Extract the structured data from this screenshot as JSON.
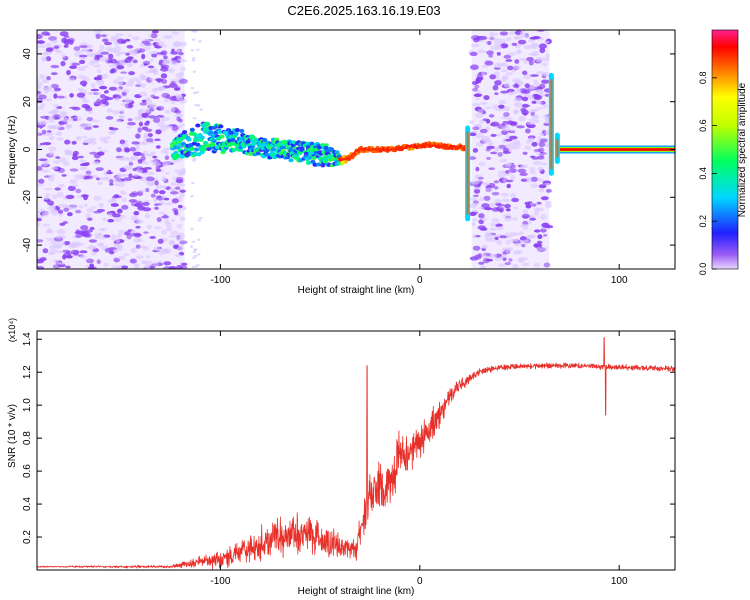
{
  "figure_title": "C2E6.2025.163.16.19.E03",
  "colors": {
    "frame": "#000000",
    "snr_line": "#e8302a",
    "noise_purple": "#8a3ff2",
    "noise_purple_light": "#d9c6ff"
  },
  "chart_data": [
    {
      "type": "heatmap",
      "title": "",
      "xlabel": "Height of straight line (km)",
      "ylabel": "Frequency (Hz)",
      "xlim": [
        -192,
        128
      ],
      "ylim": [
        -50,
        50
      ],
      "x_ticks": [
        -100,
        0,
        100
      ],
      "y_ticks": [
        -40,
        -20,
        0,
        20,
        40
      ],
      "grid": false,
      "colorbar": {
        "label": "Normalized spectral amplitude",
        "range": [
          0,
          1
        ],
        "ticks": [
          "0.0",
          "0.2",
          "0.4",
          "0.6",
          "0.8"
        ],
        "colormap": "rainbow"
      },
      "noise_regions_x": [
        [
          -192,
          -118
        ],
        [
          26,
          65
        ]
      ],
      "signal_track": {
        "x": [
          -124,
          -110,
          -100,
          -90,
          -80,
          -70,
          -60,
          -50,
          -45,
          -40,
          -36,
          -30,
          -25,
          -15,
          -5,
          5,
          15,
          21,
          24
        ],
        "y_mid": [
          0,
          5,
          5,
          3,
          1,
          0,
          -1,
          -2,
          -3,
          -4,
          -4,
          0,
          0,
          0,
          1,
          2,
          1,
          1,
          0
        ],
        "spread": [
          4,
          7,
          6,
          5,
          4,
          4,
          4,
          5,
          4,
          2,
          1,
          0.6,
          0.6,
          0.5,
          0.6,
          0.6,
          0.6,
          0.6,
          0.8
        ]
      },
      "tail_track": {
        "x": [
          69,
          128
        ],
        "y": 0
      },
      "spikes": [
        {
          "x": 24,
          "y_from": -29,
          "y_to": 9
        },
        {
          "x": 66,
          "y_from": -10,
          "y_to": 31
        },
        {
          "x": 69,
          "y_from": -5,
          "y_to": 6
        }
      ]
    },
    {
      "type": "line",
      "title": "",
      "xlabel": "Height of straight line (km)",
      "ylabel": "SNR (10 * v/v)",
      "y_multiplier": "(x10⁴)",
      "xlim": [
        -192,
        128
      ],
      "ylim": [
        0,
        1.45
      ],
      "x_ticks": [
        -100,
        0,
        100
      ],
      "y_ticks": [
        "0.2",
        "0.4",
        "0.6",
        "0.8",
        "1.0",
        "1.2",
        "1.4"
      ],
      "y_tick_values": [
        0.2,
        0.4,
        0.6,
        0.8,
        1.0,
        1.2,
        1.4
      ],
      "grid": false,
      "series": [
        {
          "color": "#e8302a",
          "envelope_x": [
            -192,
            -125,
            -110,
            -100,
            -85,
            -70,
            -60,
            -50,
            -40,
            -32,
            -28,
            -25,
            -20,
            -15,
            -10,
            -5,
            0,
            5,
            10,
            15,
            20,
            25,
            30,
            40,
            60,
            80,
            100,
            128
          ],
          "envelope_mean": [
            0.02,
            0.02,
            0.05,
            0.06,
            0.13,
            0.2,
            0.22,
            0.2,
            0.15,
            0.12,
            0.35,
            0.45,
            0.5,
            0.55,
            0.7,
            0.73,
            0.78,
            0.85,
            0.95,
            1.05,
            1.12,
            1.16,
            1.2,
            1.23,
            1.24,
            1.24,
            1.23,
            1.22
          ],
          "envelope_amp": [
            0.005,
            0.01,
            0.04,
            0.06,
            0.12,
            0.15,
            0.15,
            0.12,
            0.1,
            0.08,
            0.15,
            0.18,
            0.18,
            0.18,
            0.18,
            0.15,
            0.15,
            0.13,
            0.1,
            0.07,
            0.05,
            0.03,
            0.025,
            0.02,
            0.02,
            0.02,
            0.02,
            0.02
          ],
          "features": [
            {
              "x": -26.5,
              "y": 1.24
            },
            {
              "x": 92.5,
              "y": 1.41
            },
            {
              "x": 93.2,
              "y": 0.94
            }
          ]
        }
      ]
    }
  ]
}
